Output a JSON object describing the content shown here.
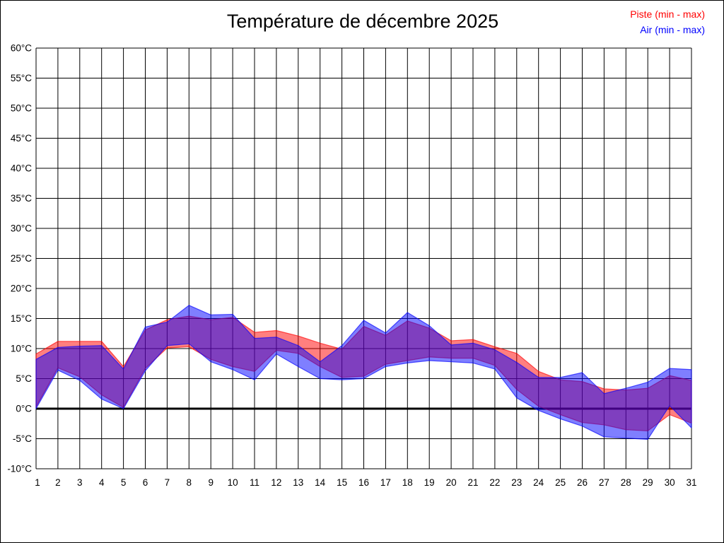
{
  "title": "Température de décembre 2025",
  "legend": [
    {
      "label": "Piste (min - max)",
      "color": "#ff0000"
    },
    {
      "label": "Air (min - max)",
      "color": "#0000ff"
    }
  ],
  "chart_data": {
    "type": "area",
    "subtype": "min-max-bands",
    "title": "Température de décembre 2025",
    "xlabel": "",
    "ylabel": "",
    "x": [
      1,
      2,
      3,
      4,
      5,
      6,
      7,
      8,
      9,
      10,
      11,
      12,
      13,
      14,
      15,
      16,
      17,
      18,
      19,
      20,
      21,
      22,
      23,
      24,
      25,
      26,
      27,
      28,
      29,
      30,
      31
    ],
    "x_tick_labels": [
      "1",
      "2",
      "3",
      "4",
      "5",
      "6",
      "7",
      "8",
      "9",
      "10",
      "11",
      "12",
      "13",
      "14",
      "15",
      "16",
      "17",
      "18",
      "19",
      "20",
      "21",
      "22",
      "23",
      "24",
      "25",
      "26",
      "27",
      "28",
      "29",
      "30",
      "31"
    ],
    "ylim": [
      -10,
      60
    ],
    "ytick_step": 5,
    "y_unit": "°C",
    "grid": true,
    "zero_line": true,
    "legend_position": "top-right",
    "band_fill_opacity": 0.5,
    "series": [
      {
        "name": "Piste (min - max)",
        "color": "#ff0000",
        "min": [
          0.3,
          6.8,
          5.3,
          2.3,
          0.2,
          6.7,
          10.1,
          10.3,
          8.2,
          7.0,
          6.2,
          9.7,
          9.2,
          7.0,
          5.2,
          5.4,
          7.4,
          8.0,
          8.6,
          8.4,
          8.4,
          7.2,
          3.2,
          0.4,
          -1.0,
          -2.3,
          -2.7,
          -3.5,
          -3.7,
          -1.0,
          -2.4
        ],
        "max": [
          9.1,
          11.2,
          11.2,
          11.2,
          7.0,
          13.1,
          14.8,
          15.4,
          14.8,
          15.2,
          12.7,
          13.0,
          12.1,
          10.9,
          9.9,
          13.7,
          12.2,
          14.6,
          13.4,
          11.3,
          11.5,
          10.3,
          9.2,
          6.2,
          4.8,
          4.5,
          3.3,
          3.1,
          3.4,
          5.5,
          4.7
        ]
      },
      {
        "name": "Air (min - max)",
        "color": "#0000ff",
        "min": [
          0.0,
          6.4,
          4.7,
          1.6,
          0.0,
          6.3,
          10.5,
          10.8,
          7.8,
          6.5,
          4.8,
          9.1,
          7.0,
          5.0,
          4.8,
          5.0,
          7.0,
          7.6,
          8.0,
          7.8,
          7.6,
          6.6,
          1.8,
          -0.3,
          -1.7,
          -2.9,
          -4.7,
          -4.9,
          -5.1,
          0.5,
          -3.2
        ],
        "max": [
          8.2,
          10.2,
          10.4,
          10.5,
          6.6,
          13.6,
          14.4,
          17.2,
          15.6,
          15.7,
          11.7,
          11.9,
          10.5,
          7.8,
          10.5,
          14.7,
          12.6,
          16.0,
          13.8,
          10.6,
          10.9,
          9.8,
          7.7,
          5.2,
          5.2,
          6.0,
          2.5,
          3.4,
          4.4,
          6.7,
          6.5
        ]
      }
    ]
  }
}
